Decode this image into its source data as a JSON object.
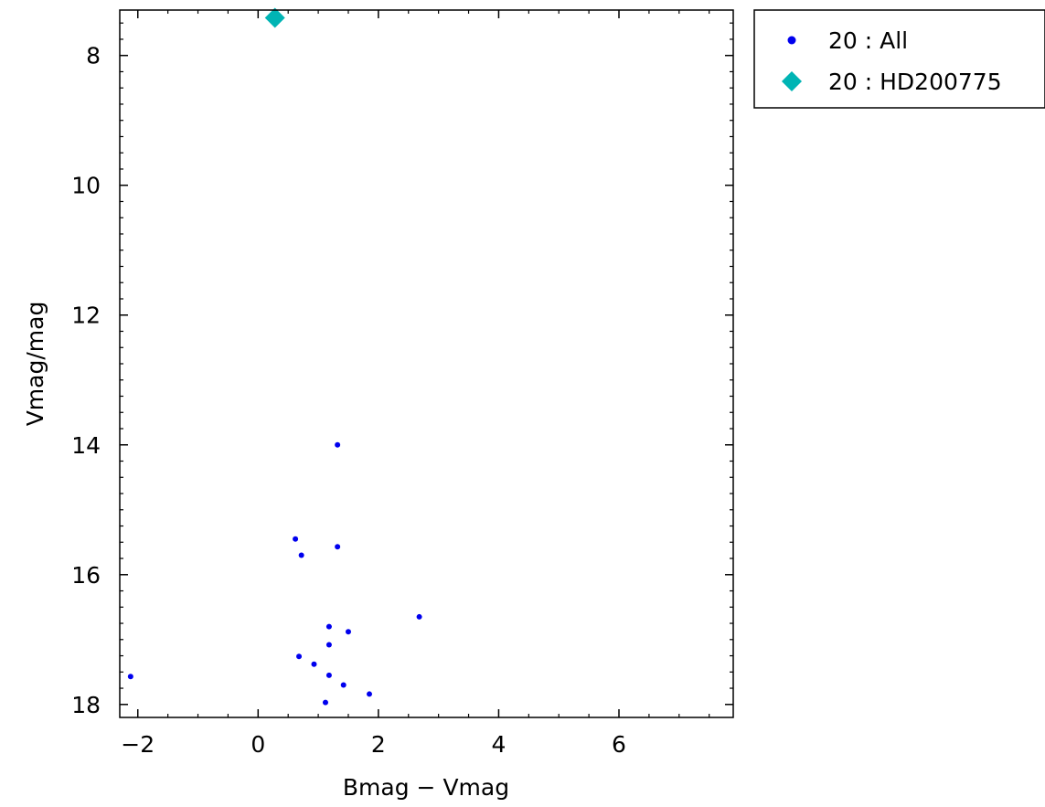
{
  "chart_data": {
    "type": "scatter",
    "xlabel": "Bmag − Vmag",
    "ylabel": "Vmag/mag",
    "xlim": [
      -2.3,
      7.9
    ],
    "ylim": [
      7.3,
      18.2
    ],
    "y_inverted": true,
    "x_ticks": [
      -2,
      0,
      2,
      4,
      6
    ],
    "y_ticks": [
      8,
      10,
      12,
      14,
      16,
      18
    ],
    "x_tick_labels": [
      "−2",
      "0",
      "2",
      "4",
      "6"
    ],
    "y_tick_labels": [
      "8",
      "10",
      "12",
      "14",
      "16",
      "18"
    ],
    "grid": false,
    "legend_position": "outside-top-right",
    "series": [
      {
        "name": "20 : All",
        "marker": "circle",
        "color": "#0000ee",
        "points": [
          {
            "x": 1.32,
            "y": 14.0
          },
          {
            "x": 0.62,
            "y": 15.45
          },
          {
            "x": 0.72,
            "y": 15.7
          },
          {
            "x": 1.32,
            "y": 15.57
          },
          {
            "x": 2.68,
            "y": 16.65
          },
          {
            "x": 1.18,
            "y": 16.8
          },
          {
            "x": 1.5,
            "y": 16.88
          },
          {
            "x": 1.18,
            "y": 17.08
          },
          {
            "x": 0.68,
            "y": 17.26
          },
          {
            "x": 0.93,
            "y": 17.38
          },
          {
            "x": 1.18,
            "y": 17.55
          },
          {
            "x": 1.42,
            "y": 17.7
          },
          {
            "x": 1.85,
            "y": 17.84
          },
          {
            "x": 1.12,
            "y": 17.97
          },
          {
            "x": -2.12,
            "y": 17.57
          }
        ]
      },
      {
        "name": "20 : HD200775",
        "marker": "diamond",
        "color": "#00b4b4",
        "points": [
          {
            "x": 0.28,
            "y": 7.42
          }
        ]
      }
    ]
  }
}
